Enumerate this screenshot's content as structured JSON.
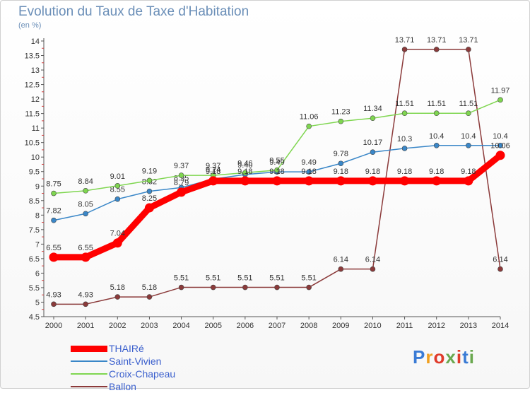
{
  "title": "Evolution du Taux de Taxe d'Habitation",
  "unit_label": "(en %)",
  "logo_text": "Proxiti",
  "chart_data": {
    "type": "line",
    "x": [
      "2000",
      "2001",
      "2002",
      "2003",
      "2004",
      "2005",
      "2006",
      "2007",
      "2008",
      "2009",
      "2010",
      "2011",
      "2012",
      "2013",
      "2014"
    ],
    "ylim": [
      4.5,
      14
    ],
    "yticks": [
      "4.5",
      "5",
      "5.5",
      "6",
      "6.5",
      "7",
      "7.5",
      "8",
      "8.5",
      "9",
      "9.5",
      "10",
      "10.5",
      "11",
      "11.5",
      "12",
      "12.5",
      "13",
      "13.5",
      "14"
    ],
    "grid": false,
    "legend_position": "bottom-left",
    "series": [
      {
        "name": "THAIRé",
        "color": "#ff0000",
        "values": [
          6.55,
          6.55,
          7.04,
          8.25,
          8.79,
          9.18,
          9.18,
          9.18,
          9.18,
          9.18,
          9.18,
          9.18,
          9.18,
          9.18,
          10.06
        ],
        "labels": [
          "6.55",
          "6.55",
          "7.04",
          "8.25",
          "8.79",
          "9.18",
          "9.18",
          "9.18",
          "9.18",
          "9.18",
          "9.18",
          "9.18",
          "9.18",
          "9.18",
          "10.06"
        ]
      },
      {
        "name": "Saint-Vivien",
        "color": "#3a87c8",
        "values": [
          7.82,
          8.05,
          8.55,
          8.82,
          8.95,
          9.24,
          9.4,
          9.49,
          9.49,
          9.78,
          10.17,
          10.3,
          10.4,
          10.4,
          10.4
        ],
        "labels": [
          "7.82",
          "8.05",
          "8.55",
          "8.82",
          "8.95",
          "9.24",
          "9.40",
          "9.49",
          "9.49",
          "9.78",
          "10.17",
          "10.3",
          "10.4",
          "10.4",
          "10.4"
        ]
      },
      {
        "name": "Croix-Chapeau",
        "color": "#7fd650",
        "values": [
          8.75,
          8.84,
          9.01,
          9.19,
          9.37,
          9.37,
          9.46,
          9.55,
          11.06,
          11.23,
          11.34,
          11.51,
          11.51,
          11.51,
          11.97
        ],
        "labels": [
          "8.75",
          "8.84",
          "9.01",
          "9.19",
          "9.37",
          "9.37",
          "9.46",
          "9.55",
          "11.06",
          "11.23",
          "11.34",
          "11.51",
          "11.51",
          "11.51",
          "11.97"
        ]
      },
      {
        "name": "Ballon",
        "color": "#8b3a3a",
        "values": [
          4.93,
          4.93,
          5.18,
          5.18,
          5.51,
          5.51,
          5.51,
          5.51,
          5.51,
          6.14,
          6.14,
          13.71,
          13.71,
          13.71,
          6.14
        ],
        "labels": [
          "4.93",
          "4.93",
          "5.18",
          "5.18",
          "5.51",
          "5.51",
          "5.51",
          "5.51",
          "5.51",
          "6.14",
          "6.14",
          "13.71",
          "13.71",
          "13.71",
          "6.14"
        ]
      }
    ]
  }
}
